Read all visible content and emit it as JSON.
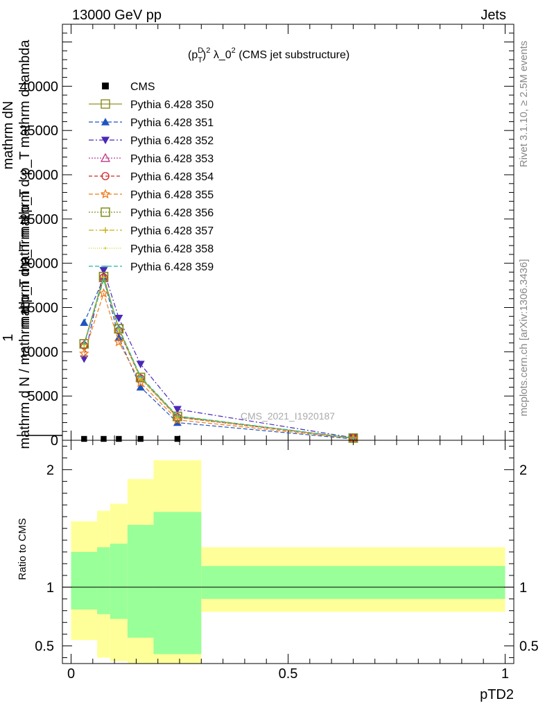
{
  "header": {
    "left_label": "13000 GeV pp",
    "right_label": "Jets"
  },
  "side_labels": {
    "rivet": "Rivet 3.1.10, ≥ 2.5M events",
    "mcplots": "mcplots.cern.ch [arXiv:1306.3436]"
  },
  "chart_data": [
    {
      "type": "line",
      "title": "(p_T^D)^2 λ_0^2 (CMS jet substructure)",
      "title_parts": {
        "open": "(p",
        "sup": "D",
        "sub": "T",
        "close": ")",
        "sup2": "2",
        "mid": " λ_0",
        "sup3": "2",
        "tail": " (CMS jet substructure)"
      },
      "ylabel_top": "mathrm dN",
      "ylabel_middle": "mathrm d p_T mathrm d p_T mathrm d lambda",
      "ylabel_bottom_one": "1",
      "ylabel_bottom": "mathrm d N / mathrm d p_T mathrm d p_T",
      "ylabel_note": "Overlapping rotated labels rendered as in source",
      "xlim": [
        -0.02,
        1.02
      ],
      "ylim": [
        0,
        47000
      ],
      "yticks": [
        0,
        5000,
        10000,
        15000,
        20000,
        25000,
        30000,
        35000,
        40000,
        45000
      ],
      "ytick_labels": [
        "0",
        "5000",
        "10000",
        "15000",
        "20000",
        "25000",
        "30000",
        "35000",
        "40000",
        ""
      ],
      "watermark": "CMS_2021_I1920187",
      "x": [
        0.03,
        0.075,
        0.11,
        0.16,
        0.245,
        0.65
      ],
      "series": [
        {
          "name": "CMS",
          "marker": "square-filled",
          "color": "#000000",
          "dash": "none",
          "values": [
            0,
            0,
            0,
            0,
            0,
            null
          ]
        },
        {
          "name": "Pythia 6.428 350",
          "marker": "square-open",
          "color": "#8f8f2a",
          "dash": "solid",
          "values": [
            10900,
            18500,
            12600,
            7100,
            2700,
            250
          ]
        },
        {
          "name": "Pythia 6.428 351",
          "marker": "triangle-up-filled",
          "color": "#1f55c0",
          "dash": "6,3",
          "values": [
            13300,
            18300,
            11600,
            6000,
            2000,
            150
          ]
        },
        {
          "name": "Pythia 6.428 352",
          "marker": "triangle-down-filled",
          "color": "#4b28b8",
          "dash": "7,3,2,3",
          "values": [
            9200,
            19200,
            13800,
            8600,
            3500,
            300
          ]
        },
        {
          "name": "Pythia 6.428 353",
          "marker": "triangle-up-open",
          "color": "#c0398a",
          "dash": "2,2",
          "values": [
            10800,
            18300,
            12500,
            7000,
            2600,
            240
          ]
        },
        {
          "name": "Pythia 6.428 354",
          "marker": "circle-open",
          "color": "#d02525",
          "dash": "5,3",
          "values": [
            10700,
            18400,
            12400,
            7000,
            2600,
            240
          ]
        },
        {
          "name": "Pythia 6.428 355",
          "marker": "star-open",
          "color": "#ee7a1a",
          "dash": "6,3",
          "values": [
            9800,
            16600,
            11100,
            6500,
            2300,
            200
          ]
        },
        {
          "name": "Pythia 6.428 356",
          "marker": "square-open",
          "color": "#7f8f1a",
          "dash": "2,2",
          "values": [
            10900,
            18500,
            12600,
            7100,
            2700,
            250
          ]
        },
        {
          "name": "Pythia 6.428 357",
          "marker": "plus",
          "color": "#c8b01c",
          "dash": "7,3,2,3",
          "values": [
            10800,
            18400,
            12500,
            7000,
            2650,
            245
          ]
        },
        {
          "name": "Pythia 6.428 358",
          "marker": "dot",
          "color": "#c4d41c",
          "dash": "1,2",
          "values": [
            10850,
            18450,
            12550,
            7050,
            2680,
            248
          ]
        },
        {
          "name": "Pythia 6.428 359",
          "marker": "dash",
          "color": "#22b8a0",
          "dash": "6,3",
          "values": [
            10900,
            18100,
            12700,
            7200,
            2750,
            255
          ]
        }
      ]
    },
    {
      "type": "area",
      "ylabel": "Ratio to CMS",
      "xlabel": "pTD2",
      "xlim": [
        -0.02,
        1.02
      ],
      "ylim": [
        0.35,
        2.25
      ],
      "yticks_labeled": [
        0.5,
        1,
        2
      ],
      "ytick_labels": [
        "0.5",
        "1",
        "2"
      ],
      "xticks": [
        0,
        0.5,
        1
      ],
      "xtick_labels": [
        "0",
        "0.5",
        "1"
      ],
      "reference_line": 1,
      "bins": [
        {
          "x0": 0.0,
          "x1": 0.06,
          "inner": [
            0.81,
            1.3
          ],
          "outer": [
            0.55,
            1.56
          ]
        },
        {
          "x0": 0.06,
          "x1": 0.09,
          "inner": [
            0.77,
            1.34
          ],
          "outer": [
            0.4,
            1.65
          ]
        },
        {
          "x0": 0.09,
          "x1": 0.13,
          "inner": [
            0.73,
            1.37
          ],
          "outer": [
            0.37,
            1.71
          ]
        },
        {
          "x0": 0.13,
          "x1": 0.19,
          "inner": [
            0.57,
            1.53
          ],
          "outer": [
            0.35,
            1.92
          ]
        },
        {
          "x0": 0.19,
          "x1": 0.3,
          "inner": [
            0.43,
            1.64
          ],
          "outer": [
            0.35,
            2.08
          ]
        },
        {
          "x0": 0.3,
          "x1": 1.0,
          "inner": [
            0.9,
            1.18
          ],
          "outer": [
            0.79,
            1.34
          ]
        }
      ],
      "colors": {
        "inner": "#99ff99",
        "outer": "#ffff99"
      }
    }
  ]
}
